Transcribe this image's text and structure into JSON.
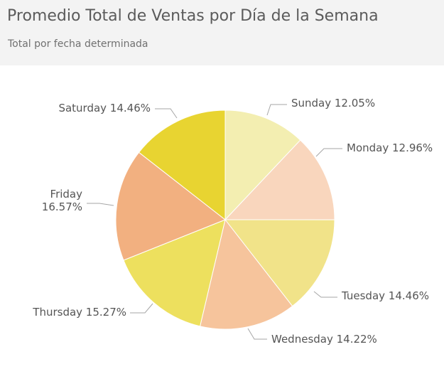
{
  "header": {
    "title": "Promedio Total de Ventas por Día de la Semana",
    "subtitle": "Total por fecha determinada"
  },
  "chart_data": {
    "type": "pie",
    "title": "Promedio Total de Ventas por Día de la Semana",
    "subtitle": "Total por fecha determinada",
    "start": "12 o'clock, clockwise",
    "slices": [
      {
        "label": "Sunday",
        "percent_text": "12.05%",
        "value": 12.05,
        "color": "#f3eeb1"
      },
      {
        "label": "Monday",
        "percent_text": "12.96%",
        "value": 12.96,
        "color": "#f9d6bd"
      },
      {
        "label": "Tuesday",
        "percent_text": "14.46%",
        "value": 14.46,
        "color": "#f1e389"
      },
      {
        "label": "Wednesday",
        "percent_text": "14.22%",
        "value": 14.22,
        "color": "#f6c49c"
      },
      {
        "label": "Thursday",
        "percent_text": "15.27%",
        "value": 15.27,
        "color": "#ede05e"
      },
      {
        "label": "Friday",
        "percent_text": "16.57%",
        "value": 16.57,
        "color": "#f2b080"
      },
      {
        "label": "Saturday",
        "percent_text": "14.46%",
        "value": 14.46,
        "color": "#e8d431"
      }
    ]
  }
}
